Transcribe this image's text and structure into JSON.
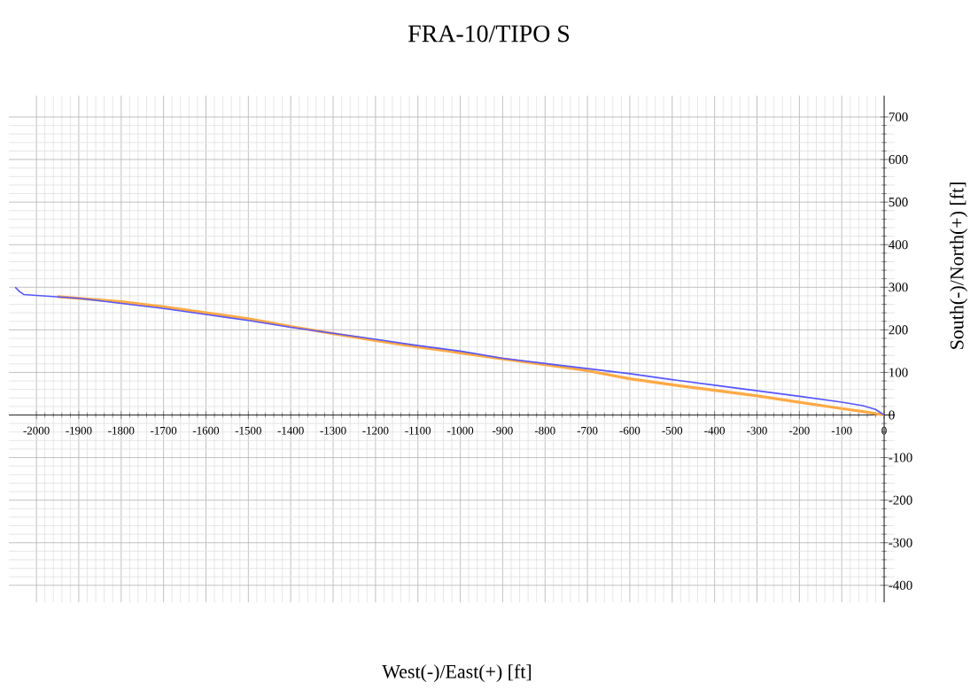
{
  "chart_data": {
    "type": "line",
    "title": "FRA-10/TIPO S",
    "xlabel": "West(-)/East(+) [ft]",
    "ylabel": "South(-)/North(+) [ft]",
    "xlim": [
      -2065,
      25
    ],
    "ylim": [
      -440,
      750
    ],
    "xticks": [
      -2000,
      -1900,
      -1800,
      -1700,
      -1600,
      -1500,
      -1400,
      -1300,
      -1200,
      -1100,
      -1000,
      -900,
      -800,
      -700,
      -600,
      -500,
      -400,
      -300,
      -200,
      -100,
      0
    ],
    "yticks": [
      -400,
      -300,
      -200,
      -100,
      0,
      100,
      200,
      300,
      400,
      500,
      600,
      700
    ],
    "grid": true,
    "marker": "none",
    "line_style": "solid",
    "series": [
      {
        "color": "#ffaa44",
        "x": [
          -1950,
          -1800,
          -1700,
          -1600,
          -1500,
          -1400,
          -1300,
          -1200,
          -1100,
          -1000,
          -900,
          -800,
          -700,
          -600,
          -500,
          -400,
          -300,
          -200,
          -100,
          -50,
          0
        ],
        "values": [
          278,
          266,
          254,
          240,
          226,
          208,
          191,
          175,
          160,
          146,
          132,
          118,
          104,
          85,
          71,
          58,
          45,
          30,
          15,
          8,
          0
        ]
      },
      {
        "color": "#5555ff",
        "x": [
          -2050,
          -2040,
          -2030,
          -2000,
          -1900,
          -1800,
          -1700,
          -1600,
          -1500,
          -1400,
          -1300,
          -1200,
          -1100,
          -1000,
          -900,
          -800,
          -700,
          -600,
          -500,
          -400,
          -300,
          -200,
          -100,
          -50,
          -20,
          0
        ],
        "values": [
          300,
          290,
          283,
          281,
          274,
          262,
          250,
          236,
          222,
          206,
          192,
          178,
          163,
          150,
          133,
          121,
          109,
          97,
          83,
          70,
          57,
          44,
          30,
          22,
          13,
          0
        ]
      }
    ]
  }
}
